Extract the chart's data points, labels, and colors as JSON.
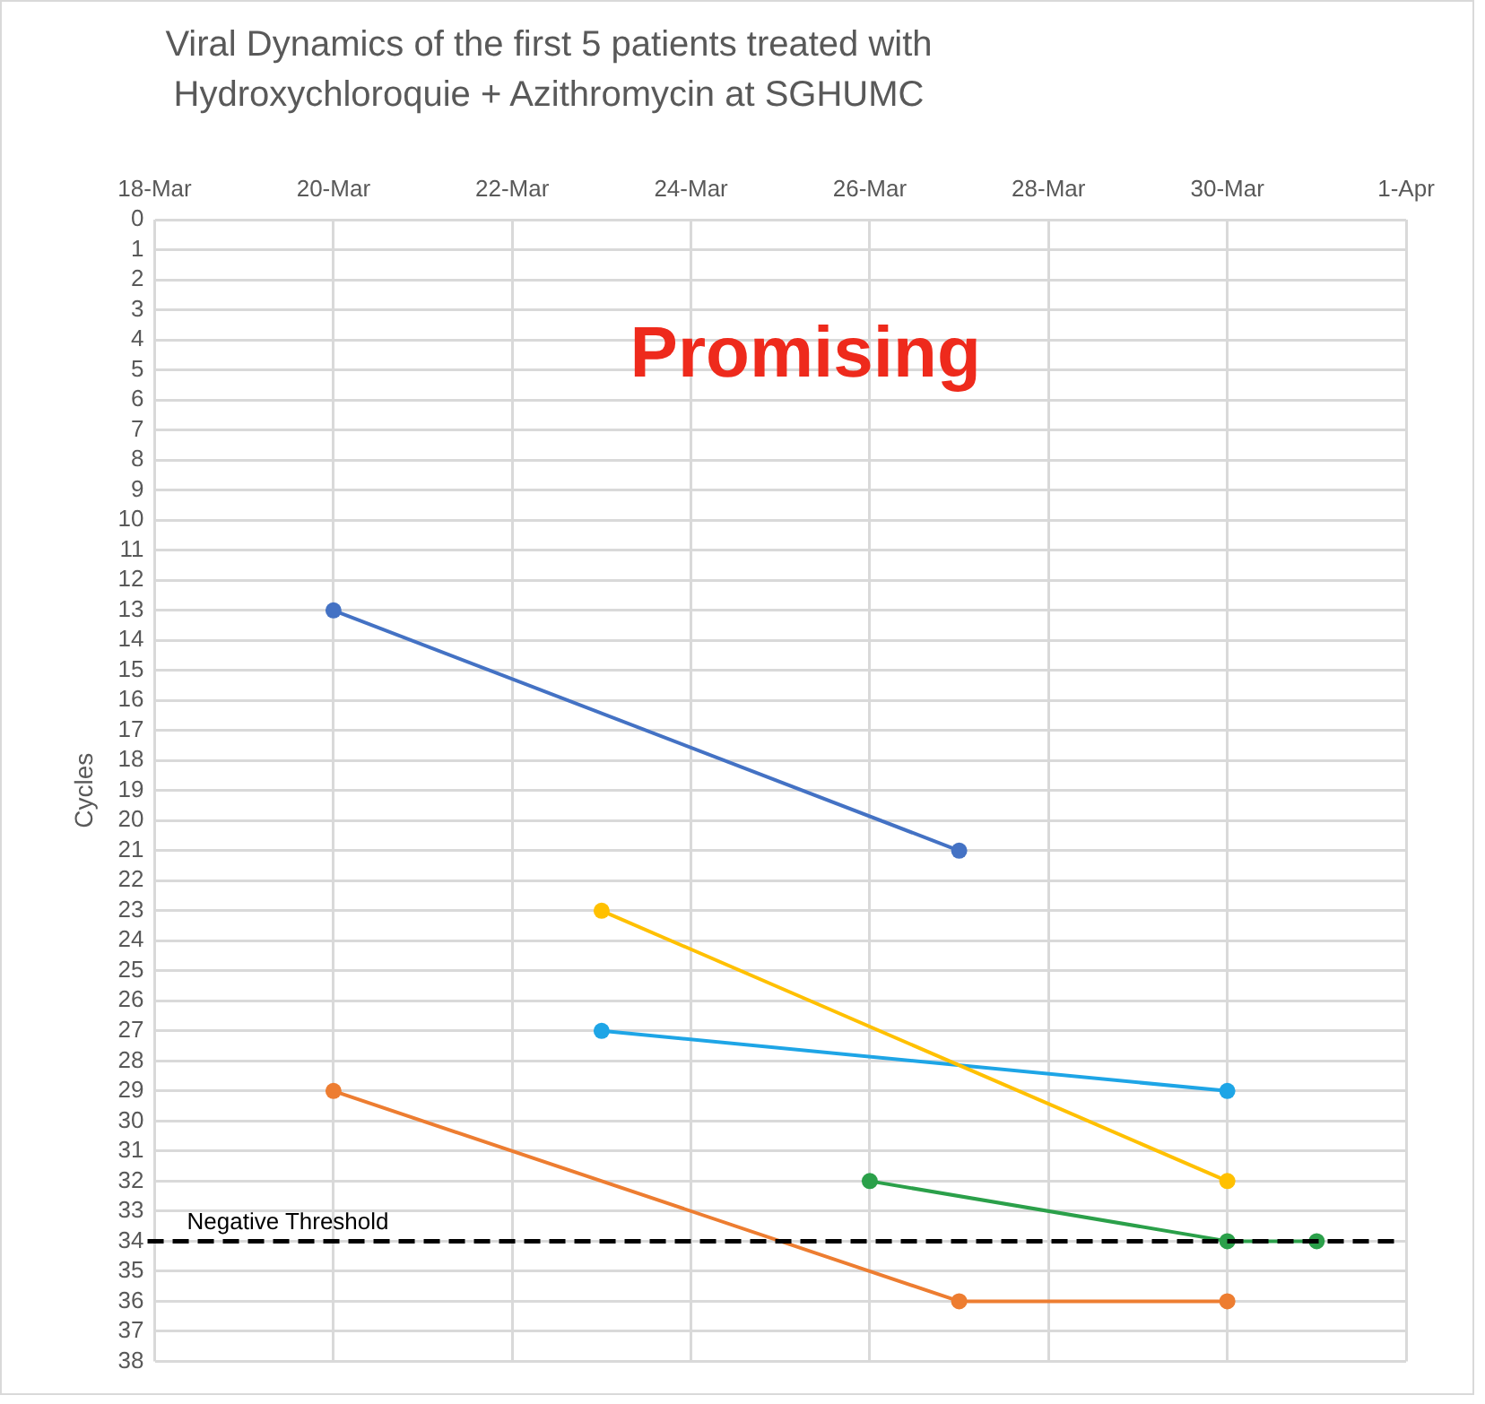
{
  "chart_data": {
    "type": "line",
    "title": "Viral Dynamics of the first 5 patients treated with Hydroxychloroquie + Azithromycin at SGHUMC",
    "ylabel": "Cycles",
    "annotations": [
      "Promising"
    ],
    "xlim": [
      "--03-18",
      "--04-01"
    ],
    "xticks": [
      {
        "value": "--03-18",
        "label": "18-Mar"
      },
      {
        "value": "--03-20",
        "label": "20-Mar"
      },
      {
        "value": "--03-22",
        "label": "22-Mar"
      },
      {
        "value": "--03-24",
        "label": "24-Mar"
      },
      {
        "value": "--03-26",
        "label": "26-Mar"
      },
      {
        "value": "--03-28",
        "label": "28-Mar"
      },
      {
        "value": "--03-30",
        "label": "30-Mar"
      },
      {
        "value": "--04-01",
        "label": "1-Apr"
      }
    ],
    "ylim": [
      38,
      0
    ],
    "yticks": [
      0,
      1,
      2,
      3,
      4,
      5,
      6,
      7,
      8,
      9,
      10,
      11,
      12,
      13,
      14,
      15,
      16,
      17,
      18,
      19,
      20,
      21,
      22,
      23,
      24,
      25,
      26,
      27,
      28,
      29,
      30,
      31,
      32,
      33,
      34,
      35,
      36,
      37,
      38
    ],
    "series": [
      {
        "color": "#4472c4",
        "x": [
          "--03-20",
          "--03-27"
        ],
        "values": [
          13,
          21
        ]
      },
      {
        "color": "#ed7d31",
        "x": [
          "--03-20",
          "--03-27",
          "--03-30"
        ],
        "values": [
          29,
          36,
          36
        ]
      },
      {
        "color": "#ffc000",
        "x": [
          "--03-23",
          "--03-30"
        ],
        "values": [
          23,
          32
        ]
      },
      {
        "color": "#1ea5e6",
        "x": [
          "--03-23",
          "--03-30"
        ],
        "values": [
          27,
          29
        ]
      },
      {
        "color": "#2ba04a",
        "x": [
          "--03-26",
          "--03-30",
          "--03-31"
        ],
        "values": [
          32,
          34,
          34
        ]
      }
    ],
    "ref_lines": [
      {
        "axis": "y",
        "value": 34,
        "label": "Negative Threshold",
        "color": "#000000",
        "line_style": "dashed"
      }
    ],
    "grid": true,
    "legend": false,
    "marker": "circle",
    "line_style": "solid"
  }
}
